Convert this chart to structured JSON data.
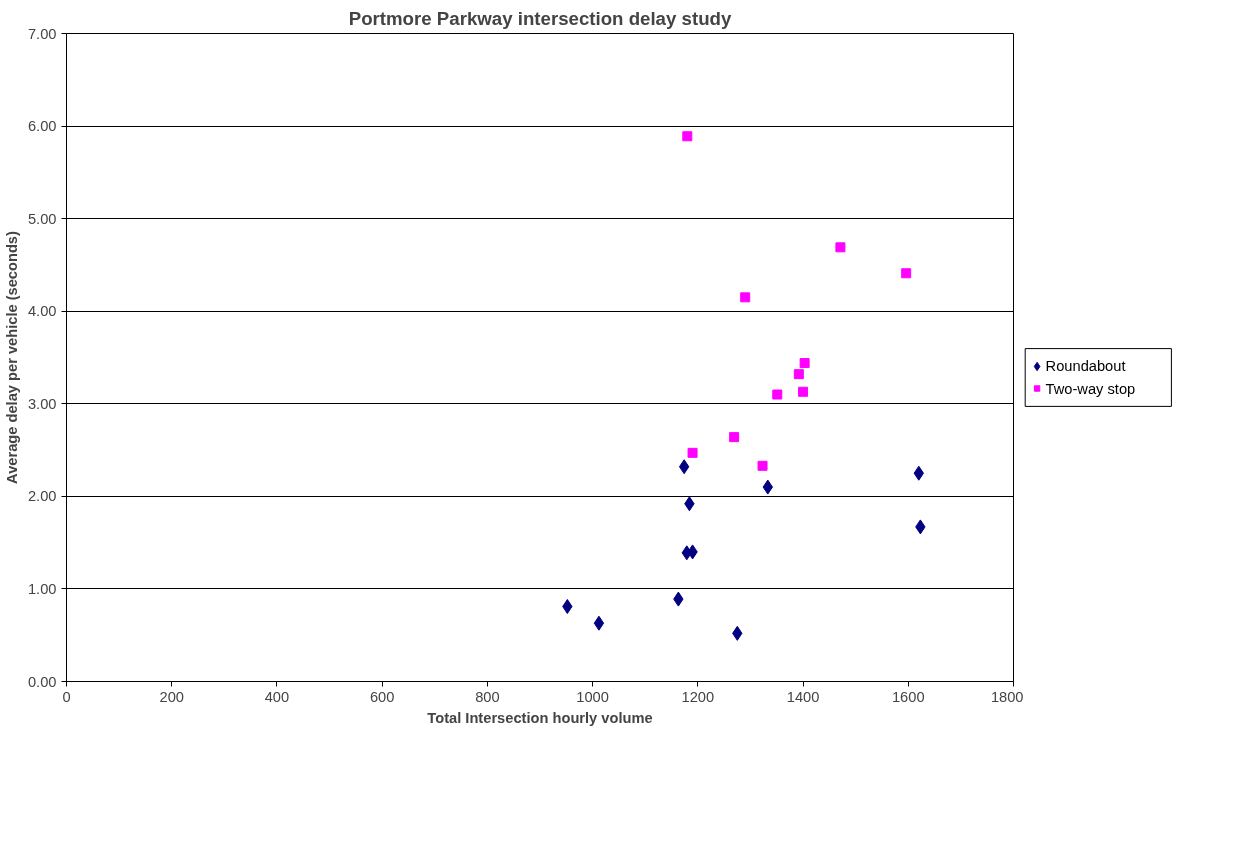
{
  "chart_data": {
    "type": "scatter",
    "title": "Portmore Parkway intersection delay study",
    "xlabel": "Total Intersection hourly volume",
    "ylabel": "Average delay per vehicle (seconds)",
    "xlim": [
      0,
      1800
    ],
    "xticks": [
      0,
      200,
      400,
      600,
      800,
      1000,
      1200,
      1400,
      1600,
      1800
    ],
    "ylim": [
      0,
      7
    ],
    "yticks": [
      {
        "value": 0,
        "label": "0.00"
      },
      {
        "value": 1,
        "label": "1.00"
      },
      {
        "value": 2,
        "label": "2.00"
      },
      {
        "value": 3,
        "label": "3.00"
      },
      {
        "value": 4,
        "label": "4.00"
      },
      {
        "value": 5,
        "label": "5.00"
      },
      {
        "value": 6,
        "label": "6.00"
      },
      {
        "value": 7,
        "label": "7.00"
      }
    ],
    "grid": "y",
    "legend": "right",
    "series": [
      {
        "name": "Roundabout",
        "color": "#000080",
        "marker": "diamond",
        "x": [
          952,
          1012,
          1163,
          1174,
          1184,
          1179,
          1190,
          1275,
          1333,
          1620,
          1623
        ],
        "values": [
          0.81,
          0.63,
          0.89,
          2.32,
          1.92,
          1.39,
          1.4,
          0.52,
          2.1,
          2.25,
          1.67
        ]
      },
      {
        "name": "Two-way stop",
        "color": "#ff00ff",
        "marker": "square",
        "x": [
          1180,
          1190,
          1269,
          1290,
          1323,
          1351,
          1392,
          1403,
          1400,
          1471,
          1596
        ],
        "values": [
          5.89,
          2.47,
          2.64,
          4.15,
          2.33,
          3.1,
          3.32,
          3.44,
          3.13,
          4.69,
          4.41
        ]
      }
    ]
  }
}
